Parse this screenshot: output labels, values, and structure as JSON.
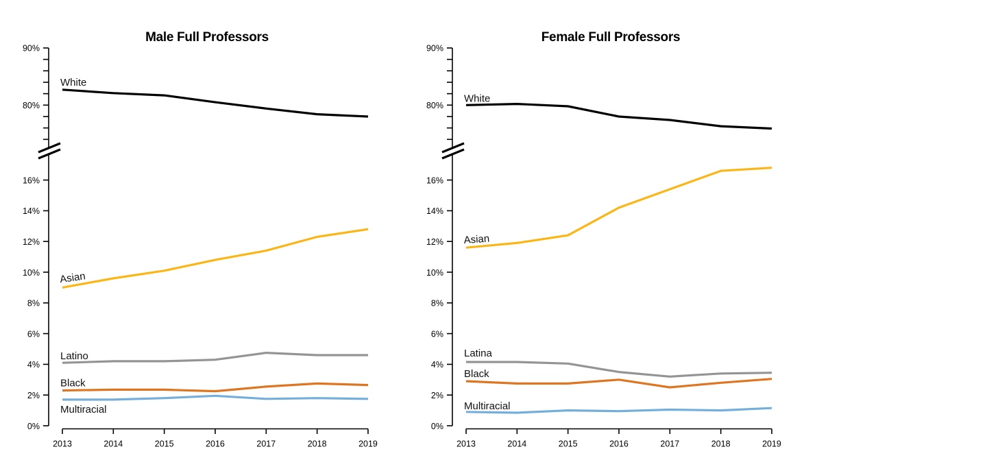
{
  "figure": {
    "background": "#ffffff",
    "text_color": "#000000",
    "axis_color": "#000000"
  },
  "chart_data": [
    {
      "type": "line",
      "id": "male",
      "title": "Male Full Professors",
      "x": [
        2013,
        2014,
        2015,
        2016,
        2017,
        2018,
        2019
      ],
      "x_labels": [
        "2013",
        "2014",
        "2015",
        "2016",
        "2017",
        "2018",
        "2019"
      ],
      "xlabel": "",
      "ylabel": "",
      "y_unit": "%",
      "axis_break": true,
      "grid": false,
      "legend_position": "inline-labels",
      "y_axis": {
        "upper_range": [
          74,
          90
        ],
        "lower_range": [
          0,
          17
        ],
        "upper_ticks": [
          {
            "value": 90,
            "label": "90%"
          },
          {
            "value": 88,
            "label": ""
          },
          {
            "value": 86,
            "label": ""
          },
          {
            "value": 84,
            "label": ""
          },
          {
            "value": 82,
            "label": ""
          },
          {
            "value": 80,
            "label": "80%"
          },
          {
            "value": 78,
            "label": ""
          },
          {
            "value": 76,
            "label": ""
          },
          {
            "value": 74,
            "label": ""
          }
        ],
        "lower_ticks": [
          {
            "value": 16,
            "label": "16%"
          },
          {
            "value": 14,
            "label": "14%"
          },
          {
            "value": 12,
            "label": "12%"
          },
          {
            "value": 10,
            "label": "10%"
          },
          {
            "value": 8,
            "label": "8%"
          },
          {
            "value": 6,
            "label": "6%"
          },
          {
            "value": 4,
            "label": "4%"
          },
          {
            "value": 2,
            "label": "2%"
          },
          {
            "value": 0,
            "label": "0%"
          }
        ]
      },
      "series": [
        {
          "name": "White",
          "color": "#000000",
          "values": [
            82.7,
            82.1,
            81.7,
            80.5,
            79.4,
            78.4,
            78.0
          ],
          "label": {
            "dx": -3,
            "dy": -6,
            "rotate": 0
          }
        },
        {
          "name": "Asian",
          "color": "#FBB615",
          "values": [
            9.0,
            9.6,
            10.1,
            10.8,
            11.4,
            12.3,
            12.8
          ],
          "label": {
            "dx": -3,
            "dy": -7,
            "rotate": -8
          }
        },
        {
          "name": "Latino",
          "color": "#949494",
          "values": [
            4.1,
            4.2,
            4.2,
            4.3,
            4.75,
            4.6,
            4.6
          ],
          "label": {
            "dx": -3,
            "dy": -5,
            "rotate": 0
          }
        },
        {
          "name": "Black",
          "color": "#DE7621",
          "values": [
            2.3,
            2.35,
            2.35,
            2.25,
            2.55,
            2.75,
            2.65
          ],
          "label": {
            "dx": -3,
            "dy": -6,
            "rotate": 0
          }
        },
        {
          "name": "Multiracial",
          "color": "#74AEDB",
          "values": [
            1.7,
            1.7,
            1.8,
            1.95,
            1.75,
            1.8,
            1.75
          ],
          "label": {
            "dx": -3,
            "dy": 19,
            "rotate": 0
          }
        }
      ]
    },
    {
      "type": "line",
      "id": "female",
      "title": "Female Full Professors",
      "x": [
        2013,
        2014,
        2015,
        2016,
        2017,
        2018,
        2019
      ],
      "x_labels": [
        "2013",
        "2014",
        "2015",
        "2016",
        "2017",
        "2018",
        "2019"
      ],
      "xlabel": "",
      "ylabel": "",
      "y_unit": "%",
      "axis_break": true,
      "grid": false,
      "legend_position": "inline-labels",
      "y_axis": {
        "upper_range": [
          74,
          90
        ],
        "lower_range": [
          0,
          17
        ],
        "upper_ticks": [
          {
            "value": 90,
            "label": "90%"
          },
          {
            "value": 88,
            "label": ""
          },
          {
            "value": 86,
            "label": ""
          },
          {
            "value": 84,
            "label": ""
          },
          {
            "value": 82,
            "label": ""
          },
          {
            "value": 80,
            "label": "80%"
          },
          {
            "value": 78,
            "label": ""
          },
          {
            "value": 76,
            "label": ""
          },
          {
            "value": 74,
            "label": ""
          }
        ],
        "lower_ticks": [
          {
            "value": 16,
            "label": "16%"
          },
          {
            "value": 14,
            "label": "14%"
          },
          {
            "value": 12,
            "label": "12%"
          },
          {
            "value": 10,
            "label": "10%"
          },
          {
            "value": 8,
            "label": "8%"
          },
          {
            "value": 6,
            "label": "6%"
          },
          {
            "value": 4,
            "label": "4%"
          },
          {
            "value": 2,
            "label": "2%"
          },
          {
            "value": 0,
            "label": "0%"
          }
        ]
      },
      "series": [
        {
          "name": "White",
          "color": "#000000",
          "values": [
            80.0,
            80.2,
            79.8,
            78.0,
            77.4,
            76.3,
            75.9
          ],
          "label": {
            "dx": -3,
            "dy": -5,
            "rotate": 0
          }
        },
        {
          "name": "Asian",
          "color": "#FBB615",
          "values": [
            11.6,
            11.9,
            12.4,
            14.2,
            15.4,
            16.6,
            16.8
          ],
          "label": {
            "dx": -3,
            "dy": -6,
            "rotate": -4
          }
        },
        {
          "name": "Latina",
          "color": "#949494",
          "values": [
            4.15,
            4.15,
            4.05,
            3.5,
            3.2,
            3.4,
            3.45
          ],
          "label": {
            "dx": -3,
            "dy": -8,
            "rotate": 0
          }
        },
        {
          "name": "Black",
          "color": "#DE7621",
          "values": [
            2.9,
            2.75,
            2.75,
            3.0,
            2.5,
            2.8,
            3.05
          ],
          "label": {
            "dx": -3,
            "dy": -6,
            "rotate": 0
          }
        },
        {
          "name": "Multiracial",
          "color": "#74AEDB",
          "values": [
            0.9,
            0.85,
            1.0,
            0.95,
            1.05,
            1.0,
            1.15
          ],
          "label": {
            "dx": -3,
            "dy": -4,
            "rotate": 0
          }
        }
      ]
    }
  ]
}
